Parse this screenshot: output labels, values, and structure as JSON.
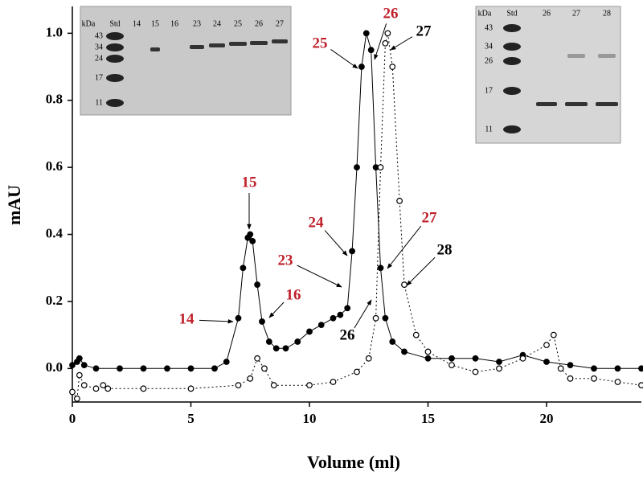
{
  "chart_data": {
    "type": "line",
    "xlabel": "Volume (ml)",
    "ylabel": "mAU",
    "xlim": [
      0,
      24
    ],
    "ylim": [
      -0.1,
      1.08
    ],
    "xticks": [
      0,
      5,
      10,
      15,
      20
    ],
    "yticks": [
      {
        "value": 0,
        "label": "0.0"
      },
      0.2,
      0.4,
      0.6,
      0.8,
      {
        "value": 1,
        "label": "1.0"
      }
    ],
    "series": [
      {
        "marker": "filled",
        "color": "#000000",
        "x": [
          0,
          0.2,
          0.3,
          0.5,
          1,
          2,
          3,
          4,
          5,
          6,
          6.5,
          7,
          7.2,
          7.4,
          7.5,
          7.6,
          7.8,
          8,
          8.3,
          8.6,
          9,
          9.5,
          10,
          10.5,
          11,
          11.3,
          11.6,
          11.8,
          12,
          12.2,
          12.4,
          12.6,
          12.8,
          13,
          13.2,
          13.5,
          14,
          15,
          16,
          17,
          18,
          19,
          20,
          21,
          22,
          23,
          24
        ],
        "values": [
          0.01,
          0.02,
          0.03,
          0.01,
          0.0,
          0.0,
          0.0,
          0.0,
          0.0,
          0.0,
          0.02,
          0.15,
          0.3,
          0.39,
          0.4,
          0.38,
          0.25,
          0.14,
          0.08,
          0.06,
          0.06,
          0.08,
          0.11,
          0.13,
          0.15,
          0.16,
          0.18,
          0.35,
          0.6,
          0.9,
          1.0,
          0.95,
          0.6,
          0.3,
          0.15,
          0.08,
          0.05,
          0.03,
          0.03,
          0.03,
          0.02,
          0.04,
          0.02,
          0.01,
          0.0,
          0.0,
          0.0
        ]
      },
      {
        "marker": "open",
        "color": "#000000",
        "x": [
          0,
          0.2,
          0.3,
          0.5,
          1,
          1.3,
          1.5,
          3,
          5,
          7,
          7.5,
          7.8,
          8.1,
          8.5,
          10,
          11,
          12,
          12.5,
          12.8,
          13,
          13.2,
          13.3,
          13.5,
          13.8,
          14,
          14.5,
          15,
          16,
          17,
          18,
          19,
          20,
          20.3,
          20.6,
          21,
          22,
          23,
          24
        ],
        "values": [
          -0.07,
          -0.09,
          -0.02,
          -0.05,
          -0.06,
          -0.05,
          -0.06,
          -0.06,
          -0.06,
          -0.05,
          -0.03,
          0.03,
          0.0,
          -0.05,
          -0.05,
          -0.04,
          -0.01,
          0.03,
          0.15,
          0.6,
          0.97,
          1.0,
          0.9,
          0.5,
          0.25,
          0.1,
          0.05,
          0.01,
          -0.01,
          0.0,
          0.03,
          0.07,
          0.1,
          0.0,
          -0.03,
          -0.03,
          -0.04,
          -0.05
        ]
      }
    ],
    "annotations": [
      {
        "text": "14",
        "color": "#c0202a"
      },
      {
        "text": "15",
        "color": "#c0202a"
      },
      {
        "text": "16",
        "color": "#c0202a"
      },
      {
        "text": "23",
        "color": "#c0202a"
      },
      {
        "text": "24",
        "color": "#c0202a"
      },
      {
        "text": "25",
        "color": "#c0202a"
      },
      {
        "text": "26",
        "color": "#c0202a"
      },
      {
        "text": "27",
        "color": "#000000"
      },
      {
        "text": "27",
        "color": "#c0202a"
      },
      {
        "text": "28",
        "color": "#000000"
      },
      {
        "text": "26",
        "color": "#000000"
      }
    ],
    "insets": [
      {
        "unit": "kDa",
        "markers": [
          "43",
          "34",
          "24",
          "17",
          "11"
        ],
        "lanes": [
          "Std",
          "14",
          "15",
          "16",
          "23",
          "24",
          "25",
          "26",
          "27"
        ]
      },
      {
        "unit": "kDa",
        "markers": [
          "43",
          "34",
          "26",
          "17",
          "11"
        ],
        "lanes": [
          "Std",
          "26",
          "27",
          "28"
        ]
      }
    ]
  }
}
